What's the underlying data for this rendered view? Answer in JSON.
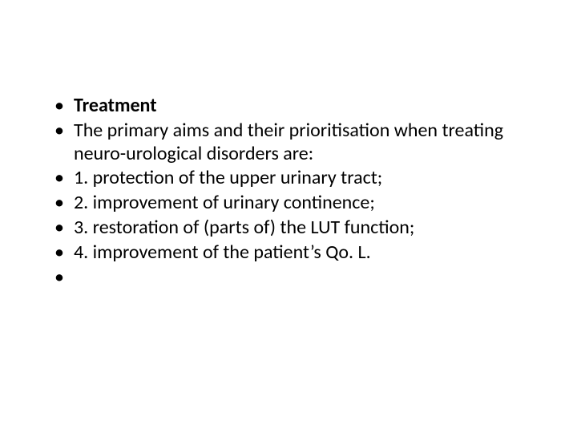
{
  "slide": {
    "background_color": "#ffffff",
    "text_color": "#000000",
    "font_family": "Calibri",
    "font_size_pt": 24,
    "bullet_glyph": "•",
    "bullets": [
      {
        "text": "Treatment",
        "bold": true
      },
      {
        "text": "The primary aims and their prioritisation when treating neuro-urological disorders are:",
        "bold": false
      },
      {
        "text": "1. protection of the upper urinary tract;",
        "bold": false
      },
      {
        "text": "2. improvement of urinary continence;",
        "bold": false
      },
      {
        "text": "3. restoration of (parts of) the LUT function;",
        "bold": false
      },
      {
        "text": "4. improvement of the patient’s Qo. L.",
        "bold": false
      },
      {
        "text": "",
        "bold": false
      }
    ]
  }
}
